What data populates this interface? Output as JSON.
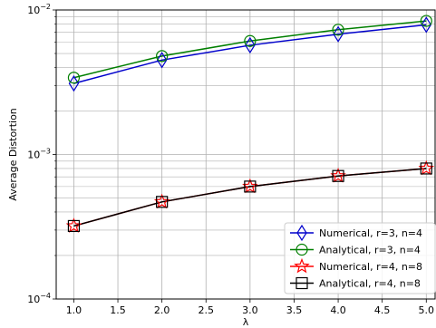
{
  "chart_data": {
    "type": "line",
    "title": "",
    "xlabel": "λ",
    "ylabel": "Average Distortion",
    "x": [
      1.0,
      2.0,
      3.0,
      4.0,
      5.0
    ],
    "xlim": [
      0.8,
      5.1
    ],
    "ylim": [
      0.0001,
      0.01
    ],
    "yscale": "log",
    "x_ticks": [
      1.0,
      1.5,
      2.0,
      2.5,
      3.0,
      3.5,
      4.0,
      4.5,
      5.0
    ],
    "x_tick_labels": [
      "1.0",
      "1.5",
      "2.0",
      "2.5",
      "3.0",
      "3.5",
      "4.0",
      "4.5",
      "5.0"
    ],
    "y_ticks": [
      0.0001,
      0.001,
      0.01
    ],
    "y_tick_labels": [
      {
        "base": "10",
        "exp": "−4"
      },
      {
        "base": "10",
        "exp": "−3"
      },
      {
        "base": "10",
        "exp": "−2"
      }
    ],
    "grid": true,
    "legend_position": "bottom-right",
    "series": [
      {
        "name": "Numerical, r=3, n=4",
        "color": "#0000cc",
        "marker": "thin-diamond",
        "values": [
          0.0031,
          0.0045,
          0.0057,
          0.0068,
          0.0079
        ]
      },
      {
        "name": "Analytical, r=3, n=4",
        "color": "#007f00",
        "marker": "circle",
        "values": [
          0.0034,
          0.0048,
          0.0061,
          0.0073,
          0.0084
        ]
      },
      {
        "name": "Numerical, r=4, n=8",
        "color": "#ff0000",
        "marker": "star",
        "values": [
          0.00032,
          0.00047,
          0.0006,
          0.00071,
          0.0008
        ]
      },
      {
        "name": "Analytical, r=4, n=8",
        "color": "#000000",
        "marker": "square",
        "values": [
          0.00032,
          0.00047,
          0.0006,
          0.00071,
          0.0008
        ]
      }
    ]
  }
}
